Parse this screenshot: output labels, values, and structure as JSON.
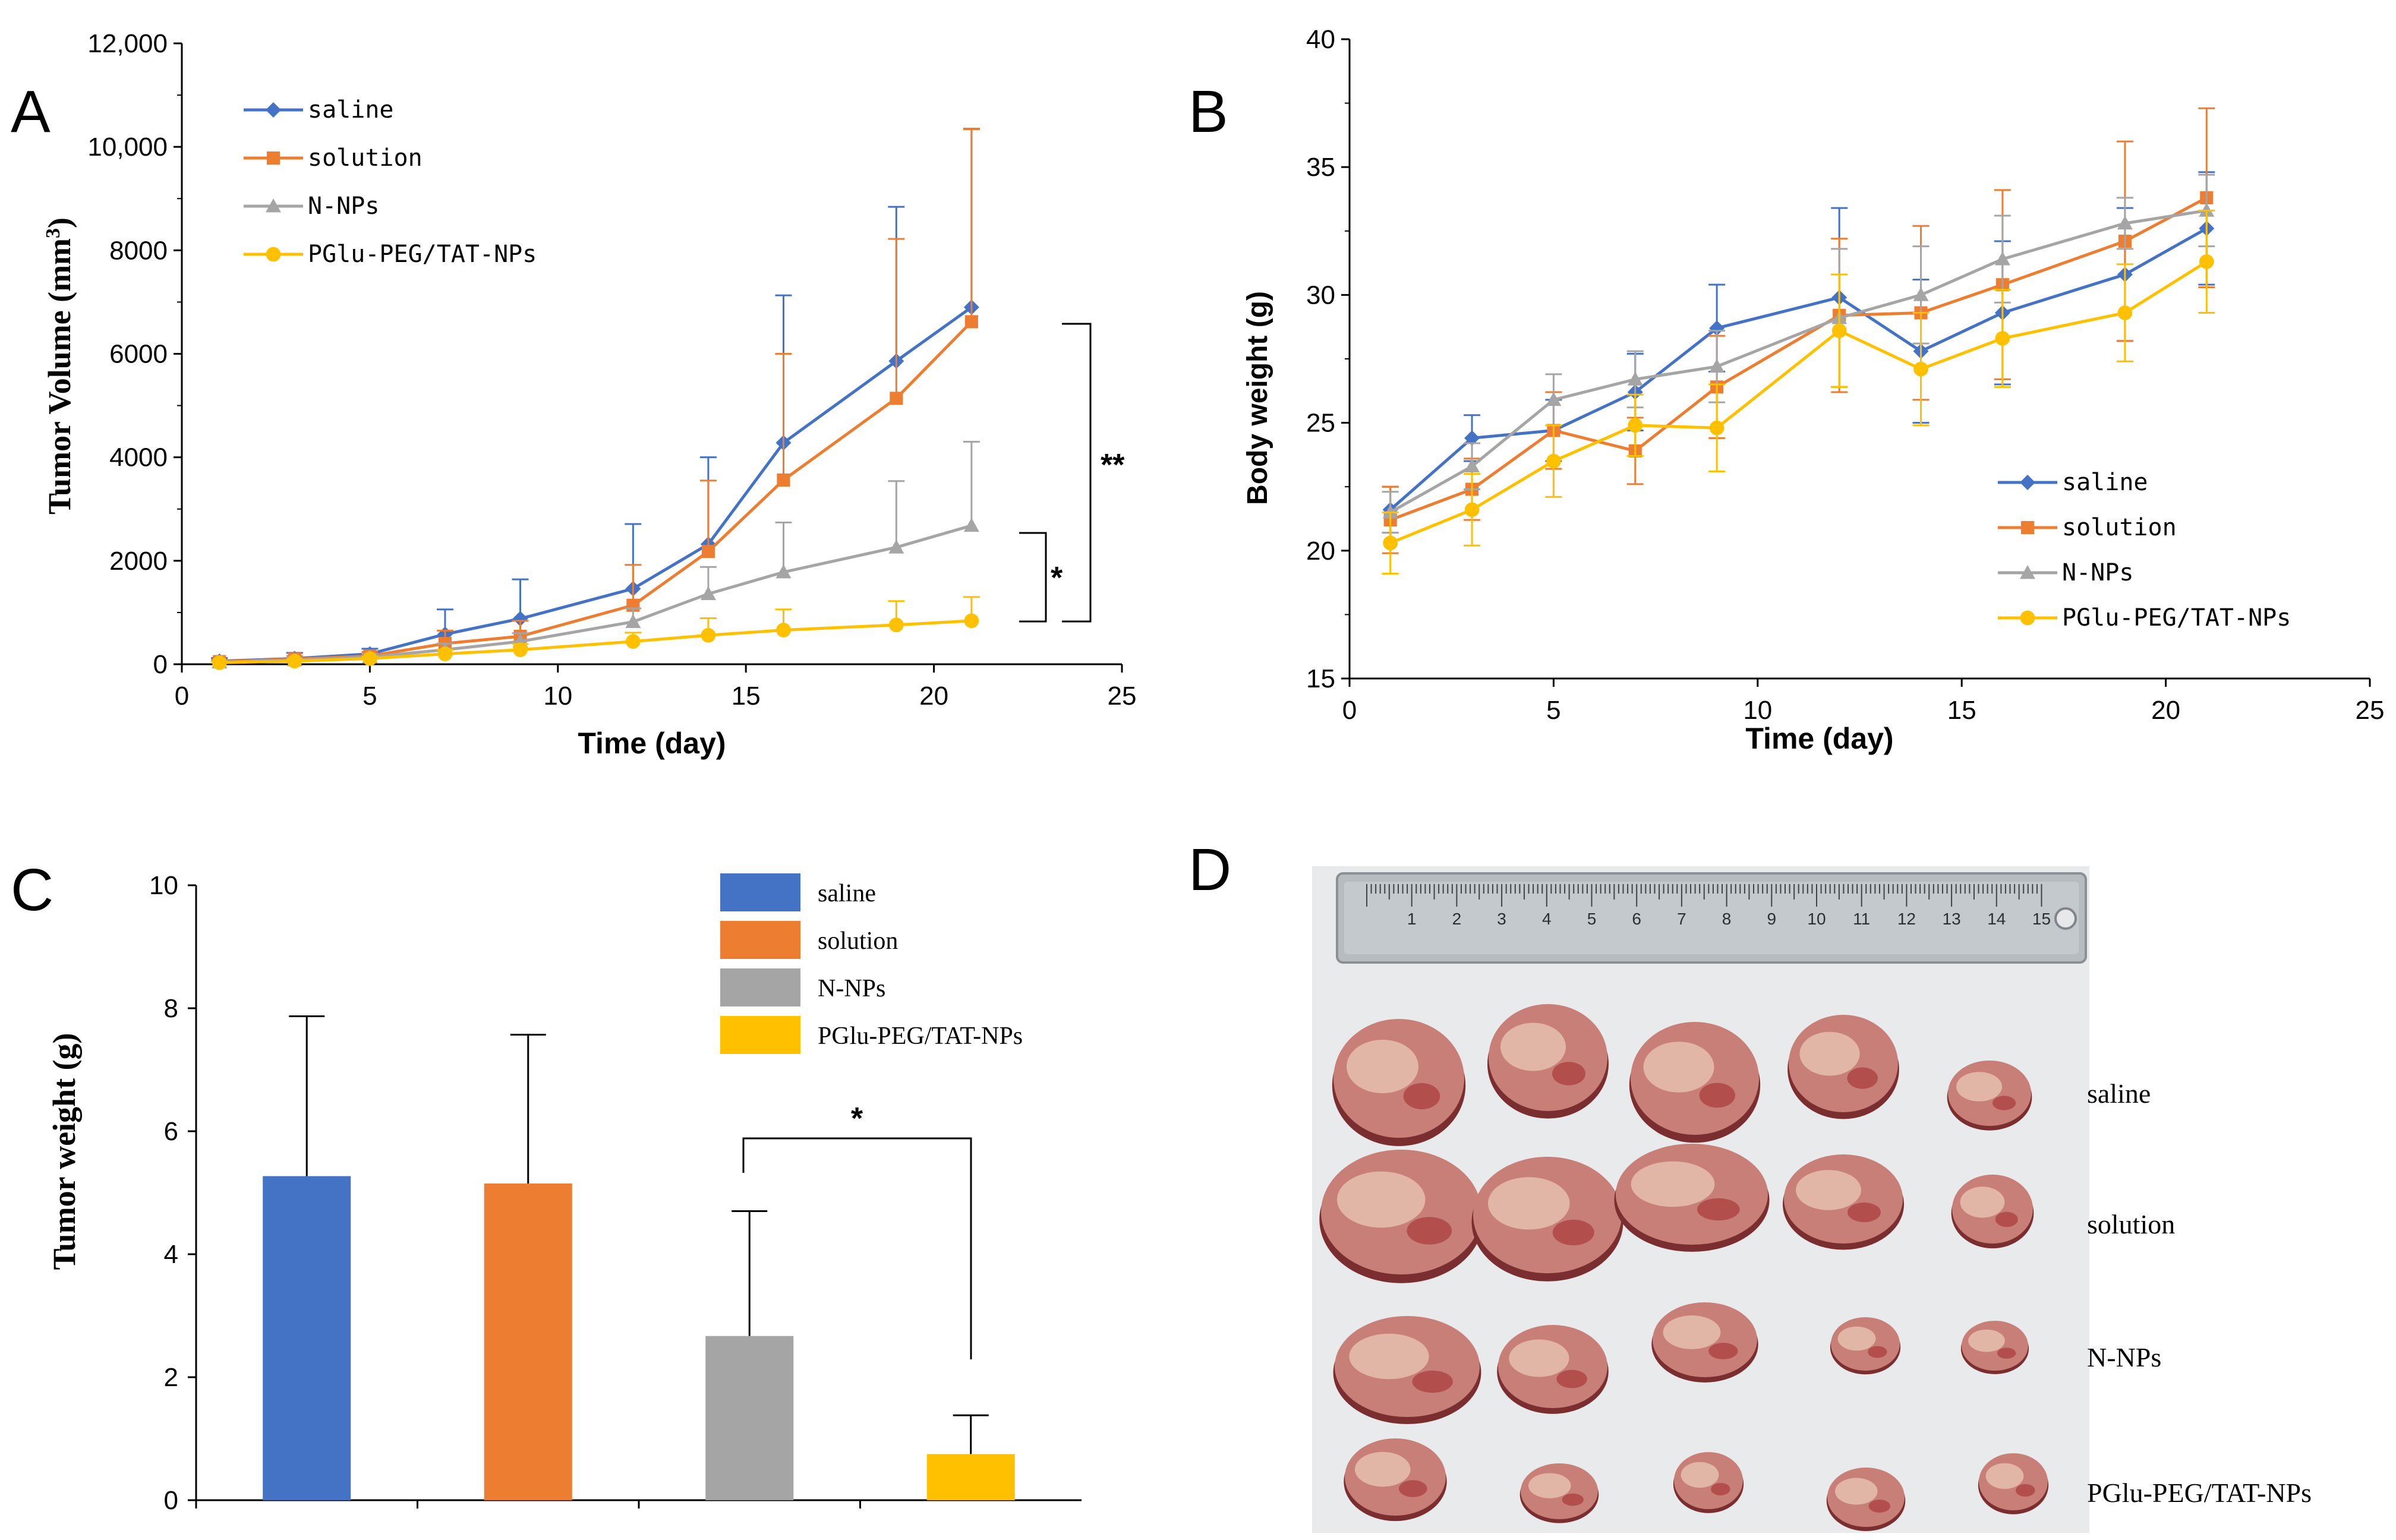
{
  "panels": {
    "A": "A",
    "B": "B",
    "C": "C",
    "D": "D"
  },
  "colors": {
    "saline": "#4472C4",
    "solution": "#ED7D31",
    "nnps": "#A5A5A5",
    "pglu": "#FFC000"
  },
  "chart_data": [
    {
      "id": "A",
      "type": "line",
      "title": "",
      "xlabel": "Time (day)",
      "ylabel": "Tumor Volume (mm³)",
      "xlim": [
        0,
        25
      ],
      "ylim": [
        0,
        12000
      ],
      "xticks": [
        0,
        5,
        10,
        15,
        20,
        25
      ],
      "yticks": [
        0,
        2000,
        4000,
        6000,
        8000,
        10000,
        12000
      ],
      "ytick_labels": [
        "0",
        "2000",
        "4000",
        "6000",
        "8000",
        "10,000",
        "12,000"
      ],
      "x": [
        1,
        3,
        5,
        7,
        9,
        12,
        14,
        16,
        19,
        21
      ],
      "series": [
        {
          "name": "saline",
          "marker": "diamond",
          "values": [
            60,
            110,
            200,
            580,
            880,
            1460,
            2320,
            4280,
            5860,
            6900
          ],
          "err": [
            60,
            110,
            100,
            480,
            760,
            1250,
            1680,
            2850,
            2980,
            3450
          ]
        },
        {
          "name": "solution",
          "marker": "square",
          "values": [
            50,
            100,
            160,
            400,
            540,
            1140,
            2180,
            3560,
            5140,
            6620
          ],
          "err": [
            40,
            60,
            80,
            250,
            300,
            780,
            1370,
            2440,
            3080,
            3720
          ]
        },
        {
          "name": "N-NPs",
          "marker": "triangle",
          "values": [
            40,
            80,
            140,
            280,
            440,
            820,
            1360,
            1780,
            2260,
            2680
          ],
          "err": [
            30,
            40,
            60,
            120,
            160,
            260,
            520,
            960,
            1280,
            1620
          ]
        },
        {
          "name": "PGlu-PEG/TAT-NPs",
          "marker": "circle",
          "values": [
            30,
            60,
            110,
            200,
            280,
            440,
            560,
            660,
            760,
            840
          ],
          "err": [
            20,
            30,
            40,
            80,
            110,
            170,
            330,
            400,
            460,
            460
          ]
        }
      ],
      "legend": {
        "placement": "top-left",
        "labels": [
          "saline",
          "solution",
          "N-NPs",
          "PGlu-PEG/TAT-NPs"
        ]
      },
      "annotations": [
        "**",
        "*"
      ]
    },
    {
      "id": "B",
      "type": "line",
      "title": "",
      "xlabel": "Time (day)",
      "ylabel": "Body weight (g)",
      "xlim": [
        0,
        25
      ],
      "ylim": [
        15,
        40
      ],
      "xticks": [
        0,
        5,
        10,
        15,
        20,
        25
      ],
      "yticks": [
        15,
        20,
        25,
        30,
        35,
        40
      ],
      "x": [
        1,
        3,
        5,
        7,
        9,
        12,
        14,
        16,
        19,
        21
      ],
      "series": [
        {
          "name": "saline",
          "marker": "diamond",
          "values": [
            21.6,
            24.4,
            24.7,
            26.2,
            28.7,
            29.9,
            27.8,
            29.3,
            30.8,
            32.6
          ],
          "err": [
            0.9,
            0.9,
            1.2,
            1.5,
            1.7,
            3.5,
            2.8,
            2.8,
            2.6,
            2.2
          ]
        },
        {
          "name": "solution",
          "marker": "square",
          "values": [
            21.2,
            22.4,
            24.7,
            23.9,
            26.4,
            29.2,
            29.3,
            30.4,
            32.1,
            33.8
          ],
          "err": [
            1.3,
            1.2,
            1.5,
            1.3,
            2.0,
            3.0,
            3.4,
            3.7,
            3.9,
            3.5
          ]
        },
        {
          "name": "N-NPs",
          "marker": "triangle",
          "values": [
            21.5,
            23.3,
            25.9,
            26.7,
            27.2,
            29.1,
            30.0,
            31.4,
            32.8,
            33.3
          ],
          "err": [
            0.8,
            0.9,
            1.0,
            1.1,
            1.4,
            2.7,
            1.9,
            1.7,
            1.0,
            1.4
          ]
        },
        {
          "name": "PGlu-PEG/TAT-NPs",
          "marker": "circle",
          "values": [
            20.3,
            21.6,
            23.5,
            24.9,
            24.8,
            28.6,
            27.1,
            28.3,
            29.3,
            31.3
          ],
          "err": [
            1.2,
            1.4,
            1.4,
            1.2,
            1.7,
            2.2,
            2.2,
            1.9,
            1.9,
            2.0
          ]
        }
      ],
      "legend": {
        "placement": "bottom-right",
        "labels": [
          "saline",
          "solution",
          "N-NPs",
          "PGlu-PEG/TAT-NPs"
        ]
      }
    },
    {
      "id": "C",
      "type": "bar",
      "title": "",
      "xlabel": "",
      "ylabel": "Tumor weight (g)",
      "ylim": [
        0,
        10
      ],
      "yticks": [
        0,
        2,
        4,
        6,
        8,
        10
      ],
      "categories": [
        "saline",
        "solution",
        "N-NPs",
        "PGlu-PEG/TAT-NPs"
      ],
      "values": [
        5.27,
        5.15,
        2.67,
        0.75
      ],
      "err": [
        2.6,
        2.42,
        2.03,
        0.63
      ],
      "legend": {
        "placement": "top-right",
        "labels": [
          "saline",
          "solution",
          "N-NPs",
          "PGlu-PEG/TAT-NPs"
        ]
      },
      "annotations": [
        "*"
      ]
    }
  ],
  "photo": {
    "row_labels": [
      "saline",
      "solution",
      "N-NPs",
      "PGlu-PEG/TAT-NPs"
    ],
    "ruler_numbers": [
      "1",
      "2",
      "3",
      "4",
      "5",
      "6",
      "7",
      "8",
      "9",
      "10",
      "11",
      "12",
      "13",
      "14",
      "15"
    ]
  }
}
